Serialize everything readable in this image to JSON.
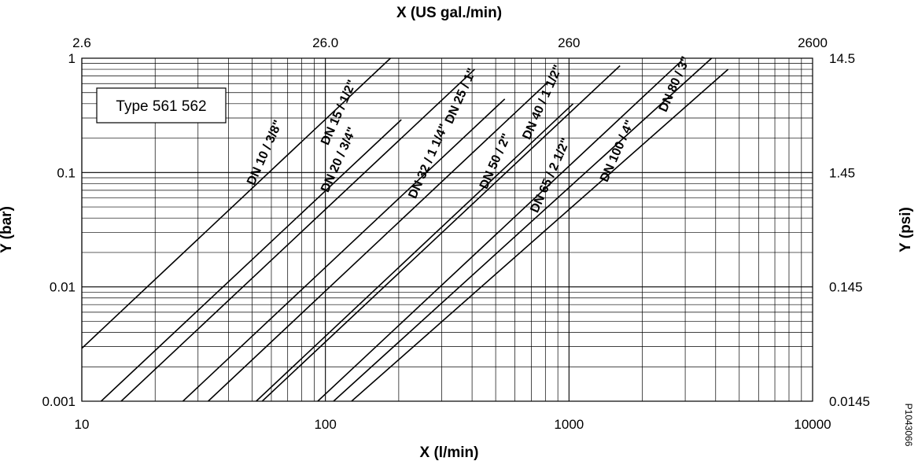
{
  "document_id": "P1043066",
  "chart_data": {
    "type": "line",
    "x_scale": "log",
    "y_scale": "log",
    "grid": true,
    "xlabel": "X (l/min)",
    "x2label": "X (US gal./min)",
    "ylabel": "Y (bar)",
    "y2label": "Y (psi)",
    "xlim": [
      10,
      10000
    ],
    "ylim": [
      0.001,
      1
    ],
    "x_ticks": [
      "10",
      "100",
      "1000",
      "10000"
    ],
    "x2_ticks": [
      {
        "label": "2.6",
        "x": 10
      },
      {
        "label": "26.0",
        "x": 100
      },
      {
        "label": "260",
        "x": 1000
      },
      {
        "label": "2600",
        "x": 10000
      }
    ],
    "y_ticks": [
      "0.001",
      "0.01",
      "0.1",
      "1"
    ],
    "y2_ticks": [
      {
        "label": "0.0145",
        "y": 0.001
      },
      {
        "label": "0.145",
        "y": 0.01
      },
      {
        "label": "1.45",
        "y": 0.1
      },
      {
        "label": "14.5",
        "y": 1
      }
    ],
    "annotation": "Type 561 562",
    "series": [
      {
        "name": "DN 10 / 3/8\"",
        "x": [
          10,
          185
        ],
        "y": [
          0.0029,
          1
        ]
      },
      {
        "name": "DN 15 / 1/2\"",
        "x": [
          12,
          205
        ],
        "y": [
          0.001,
          0.29
        ]
      },
      {
        "name": "DN 20 / 3/4\"",
        "x": [
          14.5,
          410
        ],
        "y": [
          0.001,
          0.8
        ]
      },
      {
        "name": "DN 25 / 1\"",
        "x": [
          26,
          545
        ],
        "y": [
          0.001,
          0.44
        ]
      },
      {
        "name": "DN 32 / 1 1/4\"",
        "x": [
          33,
          820
        ],
        "y": [
          0.001,
          0.62
        ]
      },
      {
        "name": "DN 40 / 1 1/2\"",
        "x": [
          52,
          1040
        ],
        "y": [
          0.001,
          0.4
        ]
      },
      {
        "name": "DN 50 / 2\"",
        "x": [
          55,
          1620
        ],
        "y": [
          0.001,
          0.86
        ]
      },
      {
        "name": "DN 65 / 2 1/2\"",
        "x": [
          93,
          2900
        ],
        "y": [
          0.001,
          0.95
        ]
      },
      {
        "name": "DN 80 / 3\"",
        "x": [
          108,
          3850
        ],
        "y": [
          0.001,
          1
        ]
      },
      {
        "name": "DN 100 / 4\"",
        "x": [
          128,
          4500
        ],
        "y": [
          0.001,
          0.8
        ]
      }
    ],
    "series_labels": [
      "DN 10 / 3/8\"",
      "DN 15 / 1/2\"",
      "DN 20 / 3/4\"",
      "DN 32 / 1 1/4\"",
      "DN 25 / 1\"",
      "DN 50 / 2\"",
      "DN 40 / 1 1/2\"",
      "DN 65 / 2 1/2\"",
      "DN 100 / 4\"",
      "DN 80 / 3\""
    ]
  }
}
